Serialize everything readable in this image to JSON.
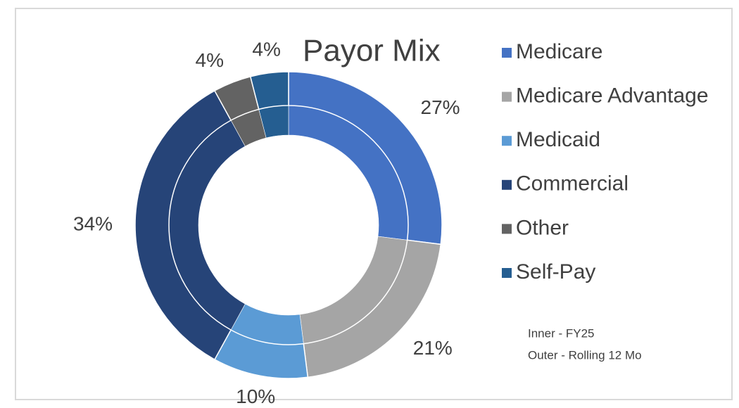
{
  "chart_data": {
    "type": "donut",
    "title": "Payor Mix",
    "categories": [
      "Medicare",
      "Medicare Advantage",
      "Medicaid",
      "Commercial",
      "Other",
      "Self-Pay"
    ],
    "colors": [
      "#4472c4",
      "#a5a5a5",
      "#5b9bd5",
      "#264478",
      "#636363",
      "#255e91"
    ],
    "series": [
      {
        "values": [
          27,
          21,
          10,
          34,
          4,
          4
        ]
      },
      {
        "values": [
          27,
          21,
          10,
          34,
          4,
          4
        ],
        "value_labels": [
          "27%",
          "21%",
          "10%",
          "34%",
          "4%",
          "4%"
        ]
      }
    ],
    "annotations": [
      "Inner - FY25",
      "Outer - Rolling 12 Mo"
    ]
  }
}
